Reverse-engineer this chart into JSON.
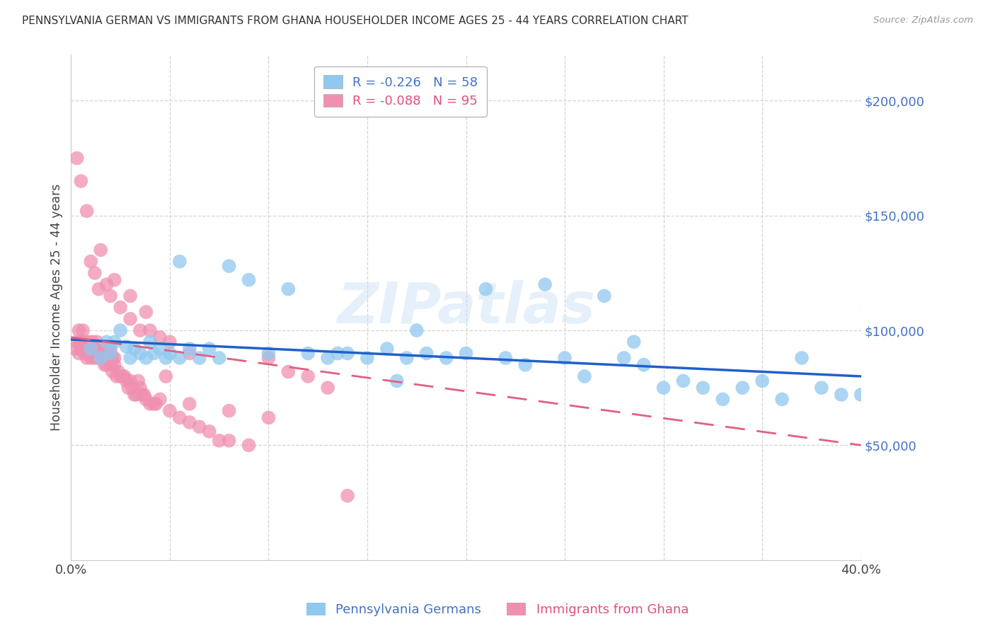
{
  "title": "PENNSYLVANIA GERMAN VS IMMIGRANTS FROM GHANA HOUSEHOLDER INCOME AGES 25 - 44 YEARS CORRELATION CHART",
  "source": "Source: ZipAtlas.com",
  "ylabel": "Householder Income Ages 25 - 44 years",
  "xlim": [
    0,
    0.4
  ],
  "ylim": [
    0,
    220000
  ],
  "yticks": [
    0,
    50000,
    100000,
    150000,
    200000
  ],
  "ytick_labels": [
    "",
    "$50,000",
    "$100,000",
    "$150,000",
    "$200,000"
  ],
  "xticks": [
    0.0,
    0.05,
    0.1,
    0.15,
    0.2,
    0.25,
    0.3,
    0.35,
    0.4
  ],
  "xtick_labels": [
    "0.0%",
    "",
    "",
    "",
    "",
    "",
    "",
    "",
    "40.0%"
  ],
  "blue_color": "#90c8f0",
  "pink_color": "#f090b0",
  "blue_line_color": "#2060cc",
  "pink_line_color": "#e06080",
  "legend_label1": "Pennsylvania Germans",
  "legend_label2": "Immigrants from Ghana",
  "watermark": "ZIPatlas",
  "blue_trend_x": [
    0.0,
    0.4
  ],
  "blue_trend_y": [
    96000,
    80000
  ],
  "pink_trend_x": [
    0.0,
    0.4
  ],
  "pink_trend_y": [
    97000,
    50000
  ],
  "blue_x": [
    0.01,
    0.015,
    0.018,
    0.02,
    0.022,
    0.025,
    0.028,
    0.03,
    0.032,
    0.035,
    0.038,
    0.04,
    0.042,
    0.045,
    0.048,
    0.05,
    0.055,
    0.06,
    0.065,
    0.07,
    0.075,
    0.08,
    0.09,
    0.1,
    0.11,
    0.12,
    0.13,
    0.14,
    0.15,
    0.16,
    0.17,
    0.18,
    0.19,
    0.2,
    0.21,
    0.22,
    0.23,
    0.24,
    0.25,
    0.26,
    0.27,
    0.28,
    0.29,
    0.3,
    0.31,
    0.32,
    0.33,
    0.34,
    0.35,
    0.36,
    0.37,
    0.38,
    0.39,
    0.4,
    0.175,
    0.285,
    0.135,
    0.055,
    0.165
  ],
  "blue_y": [
    92000,
    88000,
    95000,
    90000,
    95000,
    100000,
    93000,
    88000,
    92000,
    90000,
    88000,
    95000,
    90000,
    92000,
    88000,
    90000,
    88000,
    92000,
    88000,
    92000,
    88000,
    128000,
    122000,
    90000,
    118000,
    90000,
    88000,
    90000,
    88000,
    92000,
    88000,
    90000,
    88000,
    90000,
    118000,
    88000,
    85000,
    120000,
    88000,
    80000,
    115000,
    88000,
    85000,
    75000,
    78000,
    75000,
    70000,
    75000,
    78000,
    70000,
    88000,
    75000,
    72000,
    72000,
    100000,
    95000,
    90000,
    130000,
    78000
  ],
  "pink_x": [
    0.002,
    0.003,
    0.004,
    0.004,
    0.005,
    0.005,
    0.006,
    0.006,
    0.007,
    0.007,
    0.008,
    0.008,
    0.009,
    0.009,
    0.01,
    0.01,
    0.011,
    0.011,
    0.012,
    0.012,
    0.013,
    0.013,
    0.014,
    0.014,
    0.015,
    0.015,
    0.016,
    0.016,
    0.017,
    0.017,
    0.018,
    0.018,
    0.019,
    0.019,
    0.02,
    0.02,
    0.021,
    0.021,
    0.022,
    0.022,
    0.023,
    0.024,
    0.025,
    0.026,
    0.027,
    0.028,
    0.029,
    0.03,
    0.031,
    0.032,
    0.033,
    0.034,
    0.035,
    0.036,
    0.037,
    0.038,
    0.04,
    0.042,
    0.045,
    0.048,
    0.05,
    0.055,
    0.06,
    0.065,
    0.07,
    0.075,
    0.08,
    0.09,
    0.1,
    0.11,
    0.12,
    0.13,
    0.005,
    0.008,
    0.01,
    0.012,
    0.015,
    0.02,
    0.025,
    0.03,
    0.035,
    0.04,
    0.045,
    0.05,
    0.06,
    0.022,
    0.018,
    0.014,
    0.03,
    0.038,
    0.043,
    0.06,
    0.08,
    0.1,
    0.14,
    0.003
  ],
  "pink_y": [
    92000,
    95000,
    100000,
    90000,
    92000,
    95000,
    100000,
    92000,
    95000,
    90000,
    92000,
    88000,
    95000,
    90000,
    92000,
    88000,
    90000,
    95000,
    92000,
    88000,
    90000,
    95000,
    88000,
    90000,
    88000,
    92000,
    88000,
    90000,
    85000,
    88000,
    92000,
    85000,
    88000,
    90000,
    85000,
    92000,
    88000,
    82000,
    85000,
    88000,
    80000,
    82000,
    80000,
    80000,
    80000,
    78000,
    75000,
    78000,
    75000,
    72000,
    72000,
    78000,
    75000,
    72000,
    72000,
    70000,
    68000,
    68000,
    70000,
    80000,
    65000,
    62000,
    60000,
    58000,
    56000,
    52000,
    52000,
    50000,
    88000,
    82000,
    80000,
    75000,
    165000,
    152000,
    130000,
    125000,
    135000,
    115000,
    110000,
    105000,
    100000,
    100000,
    97000,
    95000,
    90000,
    122000,
    120000,
    118000,
    115000,
    108000,
    68000,
    68000,
    65000,
    62000,
    28000,
    175000
  ]
}
